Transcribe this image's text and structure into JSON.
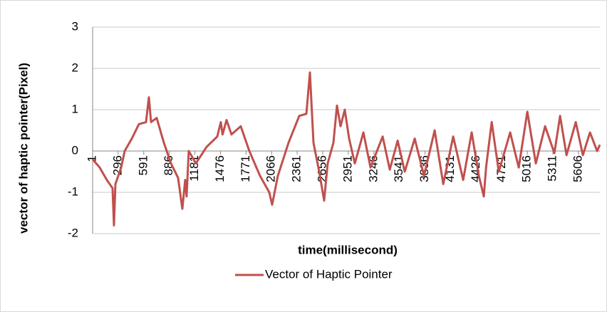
{
  "chart_data": {
    "type": "line",
    "x_label": "time(millisecond)",
    "y_label": "vector of haptic pointer(Pixel)",
    "xlim": [
      1,
      5853
    ],
    "xticks": [
      1,
      296,
      591,
      886,
      1181,
      1476,
      1771,
      2066,
      2361,
      2656,
      2951,
      3246,
      3541,
      3836,
      4131,
      4426,
      4721,
      5016,
      5311,
      5606
    ],
    "ylim": [
      -2,
      3
    ],
    "yticks": [
      -2,
      -1,
      0,
      1,
      2,
      3
    ],
    "grid": true,
    "legend": "bottom",
    "series": [
      {
        "name": "Vector of Haptic Pointer",
        "color": "#c0504d",
        "x": [
          1,
          83,
          165,
          231,
          247,
          264,
          330,
          371,
          453,
          535,
          617,
          650,
          675,
          740,
          823,
          905,
          987,
          1036,
          1069,
          1085,
          1110,
          1192,
          1316,
          1439,
          1480,
          1500,
          1546,
          1603,
          1710,
          1809,
          1932,
          2039,
          2072,
          2138,
          2261,
          2385,
          2467,
          2508,
          2549,
          2615,
          2672,
          2713,
          2779,
          2820,
          2861,
          2910,
          2960,
          3026,
          3125,
          3207,
          3347,
          3429,
          3520,
          3602,
          3717,
          3824,
          3947,
          4046,
          4161,
          4276,
          4374,
          4457,
          4514,
          4540,
          4605,
          4687,
          4818,
          4917,
          5016,
          5114,
          5221,
          5328,
          5394,
          5468,
          5575,
          5657,
          5739,
          5821,
          5853
        ],
        "values": [
          -0.2,
          -0.4,
          -0.7,
          -0.9,
          -1.8,
          -0.8,
          -0.4,
          0.0,
          0.3,
          0.65,
          0.7,
          1.3,
          0.7,
          0.8,
          0.2,
          -0.3,
          -0.65,
          -1.4,
          -0.7,
          -1.1,
          0.0,
          -0.3,
          0.1,
          0.35,
          0.7,
          0.4,
          0.75,
          0.4,
          0.6,
          0.0,
          -0.6,
          -1.0,
          -1.3,
          -0.6,
          0.2,
          0.85,
          0.9,
          1.9,
          0.2,
          -0.5,
          -1.2,
          -0.3,
          0.2,
          1.1,
          0.6,
          1.0,
          0.3,
          -0.3,
          0.45,
          -0.4,
          0.35,
          -0.45,
          0.25,
          -0.5,
          0.3,
          -0.6,
          0.5,
          -0.8,
          0.35,
          -0.7,
          0.45,
          -0.6,
          -1.1,
          -0.4,
          0.7,
          -0.5,
          0.45,
          -0.4,
          0.95,
          -0.3,
          0.6,
          -0.05,
          0.85,
          -0.1,
          0.7,
          -0.1,
          0.45,
          0.0,
          0.15
        ]
      }
    ]
  }
}
